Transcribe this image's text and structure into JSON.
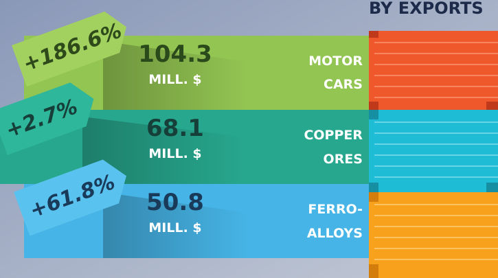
{
  "title": "BY EXPORTS",
  "items": [
    {
      "growth": "+186.6%",
      "value": "104.3",
      "unit": "MILL. $",
      "label": [
        "MOTOR",
        "CARS"
      ]
    },
    {
      "growth": "+2.7%",
      "value": "68.1",
      "unit": "MILL. $",
      "label": [
        "COPPER",
        "ORES"
      ]
    },
    {
      "growth": "+61.8%",
      "value": "50.8",
      "unit": "MILL. $",
      "label": [
        "FERRO-",
        "ALLOYS"
      ]
    }
  ]
}
